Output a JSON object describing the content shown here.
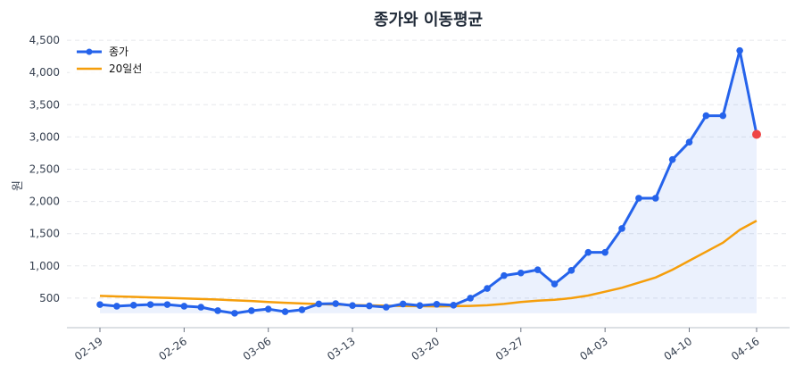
{
  "chart_data": {
    "type": "line",
    "title": "종가와 이동평균",
    "xlabel": "",
    "ylabel": "원",
    "ylim": [
      0,
      4700
    ],
    "yticks": [
      500,
      1000,
      1500,
      2000,
      2500,
      3000,
      3500,
      4000,
      4500
    ],
    "ytick_labels": [
      "500",
      "1,000",
      "1,500",
      "2,000",
      "2,500",
      "3,000",
      "3,500",
      "4,000",
      "4,500"
    ],
    "x_ticks": [
      {
        "index": 0,
        "label": "02-19"
      },
      {
        "index": 5,
        "label": "02-26"
      },
      {
        "index": 10,
        "label": "03-06"
      },
      {
        "index": 15,
        "label": "03-13"
      },
      {
        "index": 20,
        "label": "03-20"
      },
      {
        "index": 25,
        "label": "03-27"
      },
      {
        "index": 30,
        "label": "04-03"
      },
      {
        "index": 35,
        "label": "04-10"
      },
      {
        "index": 39,
        "label": "04-16"
      }
    ],
    "grid": "horizontal dashed",
    "legend": "top-left",
    "series": [
      {
        "name": "종가",
        "color": "#2563eb",
        "markers": true,
        "fill": "#eef2fc",
        "last_point_color": "#ef4444",
        "values": [
          400,
          375,
          390,
          400,
          400,
          375,
          360,
          305,
          265,
          305,
          330,
          290,
          320,
          410,
          415,
          385,
          380,
          360,
          410,
          385,
          405,
          390,
          500,
          650,
          850,
          890,
          940,
          720,
          930,
          1210,
          1210,
          1580,
          2050,
          2050,
          2650,
          2920,
          3330,
          3330,
          4340,
          3040
        ]
      },
      {
        "name": "20일선",
        "color": "#f59e0b",
        "markers": false,
        "values": [
          535,
          527,
          519,
          511,
          503,
          495,
          487,
          478,
          466,
          455,
          440,
          428,
          418,
          408,
          400,
          393,
          388,
          383,
          378,
          375,
          372,
          375,
          380,
          390,
          410,
          440,
          460,
          475,
          500,
          540,
          600,
          660,
          740,
          820,
          940,
          1080,
          1220,
          1360,
          1560,
          1700
        ]
      }
    ]
  }
}
